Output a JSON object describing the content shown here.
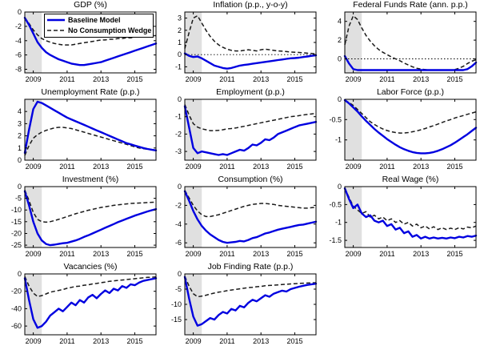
{
  "figure": {
    "legend": {
      "items": [
        {
          "label": "Baseline Model",
          "style": "solid",
          "color": "#0000e0"
        },
        {
          "label": "No Consumption Wedge",
          "style": "dashed",
          "color": "#1a1a1a"
        }
      ]
    }
  },
  "chart_data": {
    "type": "line",
    "layout": "3x4-grid",
    "x_ticks": [
      2009,
      2011,
      2013,
      2015
    ],
    "x_range": [
      2008.5,
      2016.25
    ],
    "recession_band": [
      2008.5,
      2009.5
    ],
    "colors": {
      "baseline": "#0000e0",
      "no_wedge": "#1a1a1a",
      "band": "#e0e0e0"
    },
    "series_names": [
      "Baseline Model",
      "No Consumption Wedge"
    ],
    "x": [
      2008.5,
      2008.75,
      2009,
      2009.25,
      2009.5,
      2009.75,
      2010,
      2010.25,
      2010.5,
      2010.75,
      2011,
      2011.25,
      2011.5,
      2011.75,
      2012,
      2012.25,
      2012.5,
      2012.75,
      2013,
      2013.25,
      2013.5,
      2013.75,
      2014,
      2014.25,
      2014.5,
      2014.75,
      2015,
      2015.25,
      2015.5,
      2015.75,
      2016,
      2016.25
    ],
    "panels": [
      {
        "title": "GDP (%)",
        "ylim": [
          -8.5,
          0
        ],
        "yticks": [
          0,
          -2,
          -4,
          -6,
          -8
        ],
        "zero_line": false,
        "has_legend": true,
        "baseline": [
          -0.8,
          -1.8,
          -3.0,
          -4.2,
          -5.0,
          -5.6,
          -6.0,
          -6.3,
          -6.6,
          -6.8,
          -7.0,
          -7.2,
          -7.3,
          -7.4,
          -7.4,
          -7.3,
          -7.2,
          -7.1,
          -7.0,
          -6.8,
          -6.6,
          -6.4,
          -6.2,
          -6.0,
          -5.8,
          -5.6,
          -5.4,
          -5.2,
          -5.0,
          -4.8,
          -4.6,
          -4.4
        ],
        "no_wedge": [
          -0.8,
          -1.6,
          -2.5,
          -3.2,
          -3.7,
          -4.0,
          -4.2,
          -4.4,
          -4.5,
          -4.6,
          -4.6,
          -4.6,
          -4.5,
          -4.4,
          -4.3,
          -4.2,
          -4.1,
          -4.0,
          -3.9,
          -3.9,
          -3.8,
          -3.8,
          -3.7,
          -3.7,
          -3.6,
          -3.6,
          -3.5,
          -3.5,
          -3.4,
          -3.4,
          -3.3,
          -3.3
        ]
      },
      {
        "title": "Inflation (p.p., y-o-y)",
        "ylim": [
          -1.5,
          3.5
        ],
        "yticks": [
          3,
          2,
          1,
          0,
          -1
        ],
        "zero_line": true,
        "has_legend": false,
        "baseline": [
          0.1,
          -0.1,
          -0.2,
          -0.15,
          -0.3,
          -0.5,
          -0.7,
          -0.9,
          -1.0,
          -1.1,
          -1.15,
          -1.1,
          -1.0,
          -0.9,
          -0.85,
          -0.8,
          -0.75,
          -0.7,
          -0.65,
          -0.6,
          -0.55,
          -0.5,
          -0.45,
          -0.4,
          -0.35,
          -0.3,
          -0.28,
          -0.25,
          -0.2,
          -0.15,
          -0.1,
          -0.05
        ],
        "no_wedge": [
          0.5,
          1.8,
          3.0,
          3.2,
          2.6,
          2.0,
          1.5,
          1.1,
          0.8,
          0.6,
          0.45,
          0.35,
          0.3,
          0.3,
          0.35,
          0.4,
          0.35,
          0.3,
          0.4,
          0.45,
          0.4,
          0.35,
          0.3,
          0.28,
          0.25,
          0.22,
          0.2,
          0.18,
          0.15,
          0.12,
          0.1,
          0.05
        ]
      },
      {
        "title": "Federal Funds Rate (ann. p.p.)",
        "ylim": [
          -1.5,
          5
        ],
        "yticks": [
          4,
          2,
          0
        ],
        "zero_line": true,
        "has_legend": false,
        "baseline": [
          0.3,
          -0.5,
          -1.1,
          -1.2,
          -1.2,
          -1.2,
          -1.2,
          -1.2,
          -1.2,
          -1.2,
          -1.2,
          -1.2,
          -1.2,
          -1.2,
          -1.2,
          -1.2,
          -1.2,
          -1.2,
          -1.2,
          -1.2,
          -1.2,
          -1.2,
          -1.2,
          -1.2,
          -1.2,
          -1.2,
          -1.2,
          -1.2,
          -1.2,
          -1.1,
          -0.8,
          -0.4
        ],
        "no_wedge": [
          1.5,
          3.5,
          4.6,
          4.2,
          3.3,
          2.5,
          1.9,
          1.4,
          1.0,
          0.7,
          0.45,
          0.2,
          0.0,
          -0.2,
          -0.45,
          -0.65,
          -0.85,
          -1.0,
          -1.1,
          -1.15,
          -1.2,
          -1.2,
          -1.2,
          -1.2,
          -1.2,
          -1.2,
          -1.15,
          -1.0,
          -0.8,
          -0.5,
          -0.25,
          -0.1
        ]
      },
      {
        "title": "Unemployment Rate (p.p.)",
        "ylim": [
          0,
          5
        ],
        "yticks": [
          4,
          3,
          2,
          1,
          0
        ],
        "zero_line": false,
        "has_legend": false,
        "baseline": [
          0.6,
          2.5,
          4.2,
          4.8,
          4.7,
          4.5,
          4.3,
          4.1,
          3.9,
          3.7,
          3.5,
          3.35,
          3.2,
          3.05,
          2.9,
          2.75,
          2.6,
          2.45,
          2.3,
          2.15,
          2.0,
          1.85,
          1.7,
          1.55,
          1.4,
          1.3,
          1.2,
          1.1,
          1.0,
          0.92,
          0.86,
          0.8
        ],
        "no_wedge": [
          0.4,
          1.2,
          1.8,
          2.1,
          2.3,
          2.45,
          2.55,
          2.65,
          2.7,
          2.7,
          2.65,
          2.6,
          2.5,
          2.4,
          2.3,
          2.2,
          2.1,
          2.0,
          1.9,
          1.8,
          1.7,
          1.6,
          1.5,
          1.4,
          1.3,
          1.2,
          1.1,
          1.0,
          0.95,
          0.9,
          0.85,
          0.8
        ]
      },
      {
        "title": "Employment (p.p.)",
        "ylim": [
          -3.5,
          0
        ],
        "yticks": [
          0,
          -1,
          -2,
          -3
        ],
        "zero_line": false,
        "has_legend": false,
        "baseline": [
          -0.4,
          -1.6,
          -2.8,
          -3.1,
          -3.0,
          -3.05,
          -3.1,
          -3.15,
          -3.2,
          -3.15,
          -3.2,
          -3.1,
          -3.0,
          -2.9,
          -2.95,
          -2.8,
          -2.6,
          -2.65,
          -2.5,
          -2.3,
          -2.35,
          -2.2,
          -2.0,
          -1.9,
          -1.8,
          -1.7,
          -1.6,
          -1.5,
          -1.45,
          -1.4,
          -1.35,
          -1.3
        ],
        "no_wedge": [
          -0.3,
          -0.9,
          -1.4,
          -1.6,
          -1.7,
          -1.75,
          -1.8,
          -1.8,
          -1.78,
          -1.75,
          -1.7,
          -1.68,
          -1.65,
          -1.6,
          -1.55,
          -1.5,
          -1.45,
          -1.4,
          -1.35,
          -1.3,
          -1.25,
          -1.2,
          -1.15,
          -1.1,
          -1.05,
          -1.0,
          -0.97,
          -0.94,
          -0.9,
          -0.87,
          -0.84,
          -0.8
        ]
      },
      {
        "title": "Labor Force (p.p.)",
        "ylim": [
          -1.5,
          0
        ],
        "yticks": [
          0,
          -0.5,
          -1
        ],
        "zero_line": false,
        "has_legend": false,
        "baseline": [
          -0.02,
          -0.1,
          -0.2,
          -0.3,
          -0.42,
          -0.53,
          -0.63,
          -0.73,
          -0.82,
          -0.9,
          -0.98,
          -1.05,
          -1.12,
          -1.18,
          -1.23,
          -1.27,
          -1.3,
          -1.32,
          -1.33,
          -1.33,
          -1.32,
          -1.3,
          -1.27,
          -1.23,
          -1.18,
          -1.13,
          -1.07,
          -1.0,
          -0.93,
          -0.86,
          -0.78,
          -0.7
        ],
        "no_wedge": [
          -0.02,
          -0.08,
          -0.15,
          -0.25,
          -0.35,
          -0.45,
          -0.55,
          -0.62,
          -0.68,
          -0.73,
          -0.77,
          -0.8,
          -0.82,
          -0.83,
          -0.83,
          -0.82,
          -0.8,
          -0.78,
          -0.75,
          -0.72,
          -0.68,
          -0.65,
          -0.61,
          -0.57,
          -0.53,
          -0.5,
          -0.46,
          -0.43,
          -0.4,
          -0.37,
          -0.34,
          -0.31
        ]
      },
      {
        "title": "Investment (%)",
        "ylim": [
          -26,
          0
        ],
        "yticks": [
          0,
          -5,
          -10,
          -15,
          -20,
          -25
        ],
        "zero_line": false,
        "has_legend": false,
        "baseline": [
          -2,
          -8,
          -15,
          -20,
          -23,
          -24.5,
          -25,
          -24.8,
          -24.5,
          -24.2,
          -24,
          -23.5,
          -23,
          -22.3,
          -21.5,
          -20.8,
          -20,
          -19.2,
          -18.4,
          -17.6,
          -16.8,
          -16,
          -15.2,
          -14.5,
          -13.8,
          -13.1,
          -12.4,
          -11.8,
          -11.2,
          -10.6,
          -10.1,
          -9.6
        ],
        "no_wedge": [
          -1.5,
          -6,
          -11,
          -14,
          -15,
          -15.2,
          -15,
          -14.5,
          -14,
          -13.4,
          -12.8,
          -12.2,
          -11.6,
          -11.1,
          -10.6,
          -10.1,
          -9.7,
          -9.3,
          -8.9,
          -8.6,
          -8.3,
          -8.0,
          -7.8,
          -7.6,
          -7.4,
          -7.2,
          -7.1,
          -7.0,
          -6.9,
          -6.8,
          -6.7,
          -6.6
        ]
      },
      {
        "title": "Consumption (%)",
        "ylim": [
          -6.5,
          0
        ],
        "yticks": [
          0,
          -2,
          -4,
          -6
        ],
        "zero_line": false,
        "has_legend": false,
        "baseline": [
          -0.5,
          -1.5,
          -2.6,
          -3.5,
          -4.2,
          -4.7,
          -5.1,
          -5.4,
          -5.7,
          -5.9,
          -6.0,
          -5.95,
          -5.9,
          -5.8,
          -5.85,
          -5.7,
          -5.5,
          -5.4,
          -5.2,
          -5.0,
          -4.9,
          -4.75,
          -4.6,
          -4.5,
          -4.4,
          -4.3,
          -4.2,
          -4.1,
          -4.05,
          -3.95,
          -3.85,
          -3.75
        ],
        "no_wedge": [
          -0.4,
          -1.2,
          -2.0,
          -2.6,
          -3.0,
          -3.2,
          -3.2,
          -3.1,
          -3.0,
          -2.85,
          -2.7,
          -2.55,
          -2.4,
          -2.25,
          -2.1,
          -2.0,
          -1.9,
          -1.85,
          -1.8,
          -1.8,
          -1.85,
          -1.9,
          -2.0,
          -2.05,
          -2.1,
          -2.15,
          -2.2,
          -2.25,
          -2.3,
          -2.3,
          -2.25,
          -2.2
        ]
      },
      {
        "title": "Real Wage (%)",
        "ylim": [
          -1.7,
          0
        ],
        "yticks": [
          0,
          -0.5,
          -1,
          -1.5
        ],
        "zero_line": false,
        "has_legend": false,
        "baseline": [
          -0.05,
          -0.35,
          -0.6,
          -0.5,
          -0.75,
          -0.85,
          -0.8,
          -0.95,
          -1.0,
          -0.95,
          -1.1,
          -1.05,
          -1.2,
          -1.15,
          -1.3,
          -1.25,
          -1.4,
          -1.35,
          -1.45,
          -1.4,
          -1.45,
          -1.42,
          -1.45,
          -1.43,
          -1.45,
          -1.42,
          -1.44,
          -1.4,
          -1.42,
          -1.38,
          -1.4,
          -1.37
        ],
        "no_wedge": [
          -0.05,
          -0.3,
          -0.55,
          -0.65,
          -0.75,
          -0.7,
          -0.85,
          -0.8,
          -0.9,
          -0.85,
          -0.95,
          -0.9,
          -1.0,
          -0.95,
          -1.05,
          -1.0,
          -1.1,
          -1.05,
          -1.15,
          -1.1,
          -1.18,
          -1.12,
          -1.2,
          -1.15,
          -1.2,
          -1.16,
          -1.2,
          -1.15,
          -1.18,
          -1.13,
          -1.15,
          -1.1
        ]
      },
      {
        "title": "Vacancies (%)",
        "ylim": [
          -70,
          0
        ],
        "yticks": [
          0,
          -20,
          -40,
          -60
        ],
        "zero_line": false,
        "has_legend": false,
        "baseline": [
          -5,
          -30,
          -52,
          -62,
          -60,
          -55,
          -48,
          -44,
          -40,
          -43,
          -38,
          -33,
          -36,
          -30,
          -33,
          -27,
          -24,
          -28,
          -23,
          -19,
          -22,
          -17,
          -19,
          -14,
          -16,
          -12,
          -13,
          -10,
          -8,
          -7,
          -6,
          -5
        ],
        "no_wedge": [
          -3,
          -14,
          -22,
          -26,
          -25,
          -23,
          -21,
          -20,
          -19,
          -18,
          -16.5,
          -15.5,
          -14.5,
          -14,
          -13,
          -12.5,
          -11.5,
          -11,
          -10,
          -9.5,
          -8.5,
          -8,
          -7.5,
          -7,
          -6.5,
          -6,
          -5.5,
          -5,
          -4.5,
          -4,
          -3.8,
          -3.5
        ]
      },
      {
        "title": "Job Finding Rate (p.p.)",
        "ylim": [
          -20,
          0
        ],
        "yticks": [
          0,
          -5,
          -10,
          -15
        ],
        "zero_line": false,
        "has_legend": false,
        "baseline": [
          -1,
          -8,
          -14,
          -17,
          -16.5,
          -15.5,
          -14.5,
          -15,
          -13.5,
          -12.5,
          -13,
          -11.5,
          -12,
          -10.5,
          -11,
          -9.5,
          -8.5,
          -9,
          -8,
          -7,
          -7.5,
          -6.5,
          -6,
          -5.5,
          -5.8,
          -5,
          -4.6,
          -4.2,
          -3.9,
          -3.6,
          -3.4,
          -3.2
        ],
        "no_wedge": [
          -0.8,
          -4,
          -6.5,
          -7.5,
          -7.3,
          -7.0,
          -6.6,
          -6.3,
          -6.0,
          -5.8,
          -5.5,
          -5.3,
          -5.1,
          -4.9,
          -4.7,
          -4.5,
          -4.4,
          -4.2,
          -4.1,
          -3.9,
          -3.8,
          -3.7,
          -3.6,
          -3.5,
          -3.4,
          -3.3,
          -3.2,
          -3.1,
          -3.05,
          -3.0,
          -2.95,
          -2.9
        ]
      }
    ]
  }
}
